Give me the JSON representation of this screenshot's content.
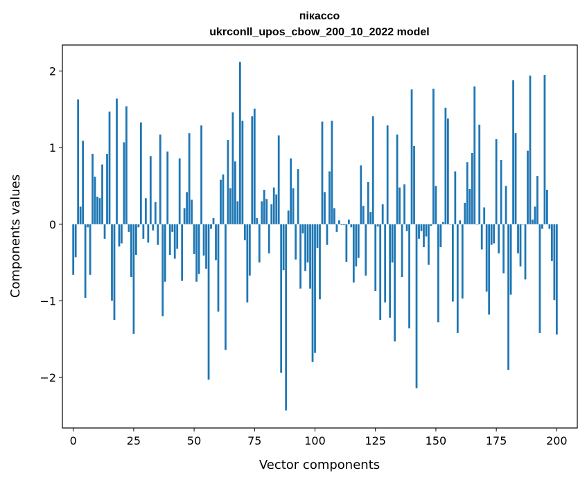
{
  "chart_data": {
    "type": "bar",
    "title_line1": "пікассо",
    "title_line2": "ukrconll_upos_cbow_200_10_2022 model",
    "xlabel": "Vector components",
    "ylabel": "Components values",
    "xlim": [
      -4.5,
      208.5
    ],
    "ylim": [
      -2.66,
      2.34
    ],
    "x_ticks": [
      0,
      25,
      50,
      75,
      100,
      125,
      150,
      175,
      200
    ],
    "y_ticks": [
      -2,
      -1,
      0,
      1,
      2
    ],
    "y_tick_labels": [
      "−2",
      "−1",
      "0",
      "1",
      "2"
    ],
    "bar_color": "#1f77b4",
    "grid": false,
    "values": [
      -0.66,
      -0.43,
      1.63,
      0.23,
      1.09,
      -0.96,
      -0.04,
      -0.66,
      0.92,
      0.62,
      0.36,
      0.34,
      0.78,
      -0.19,
      0.92,
      1.47,
      -1.0,
      -1.25,
      1.64,
      -0.29,
      -0.25,
      1.07,
      1.54,
      -0.1,
      -0.69,
      -1.43,
      -0.4,
      -0.04,
      1.33,
      -0.19,
      0.34,
      -0.24,
      0.89,
      -0.08,
      0.29,
      -0.27,
      1.17,
      -1.2,
      -0.75,
      0.95,
      -0.4,
      -0.1,
      -0.45,
      -0.32,
      0.86,
      -0.74,
      0.21,
      0.42,
      1.19,
      0.32,
      -0.39,
      -0.75,
      -0.65,
      1.29,
      -0.41,
      -0.58,
      -2.03,
      -0.06,
      0.08,
      -0.47,
      -1.14,
      0.58,
      0.65,
      -1.64,
      1.1,
      0.47,
      1.46,
      0.82,
      0.3,
      2.12,
      1.35,
      -0.21,
      -1.02,
      -0.67,
      1.41,
      1.51,
      0.08,
      -0.5,
      0.3,
      0.45,
      0.33,
      -0.38,
      0.26,
      0.48,
      0.39,
      1.16,
      -1.94,
      -0.6,
      -2.43,
      0.18,
      0.86,
      0.47,
      -0.46,
      0.72,
      -0.84,
      -0.12,
      -0.61,
      -0.5,
      -0.84,
      -1.8,
      -1.68,
      -0.31,
      -0.98,
      1.34,
      0.42,
      -0.27,
      0.69,
      1.35,
      0.21,
      -0.1,
      0.05,
      -0.01,
      -0.01,
      -0.49,
      0.06,
      -0.04,
      -0.76,
      -0.55,
      -0.44,
      0.77,
      0.24,
      -0.67,
      0.55,
      0.16,
      1.41,
      -0.87,
      -0.03,
      -1.25,
      0.26,
      -1.02,
      1.29,
      -1.22,
      -0.5,
      -1.53,
      1.17,
      0.48,
      -0.69,
      0.52,
      -0.09,
      -1.36,
      1.76,
      1.02,
      -2.14,
      -0.19,
      -0.09,
      -0.3,
      -0.16,
      -0.53,
      -0.02,
      1.77,
      0.5,
      -1.28,
      -0.3,
      0.03,
      1.52,
      1.38,
      0.0,
      -1.01,
      0.69,
      -1.42,
      0.05,
      -0.97,
      0.28,
      0.81,
      0.46,
      0.93,
      1.8,
      0.0,
      1.3,
      -0.33,
      0.22,
      -0.88,
      -1.18,
      -0.27,
      -0.25,
      1.11,
      -0.38,
      0.84,
      -0.64,
      0.5,
      -1.9,
      -0.92,
      1.88,
      1.19,
      -0.38,
      -0.55,
      0.0,
      -0.72,
      0.96,
      1.94,
      0.06,
      0.23,
      0.63,
      -1.42,
      -0.06,
      1.95,
      0.45,
      -0.06,
      -0.48,
      -0.99,
      -1.44
    ]
  }
}
